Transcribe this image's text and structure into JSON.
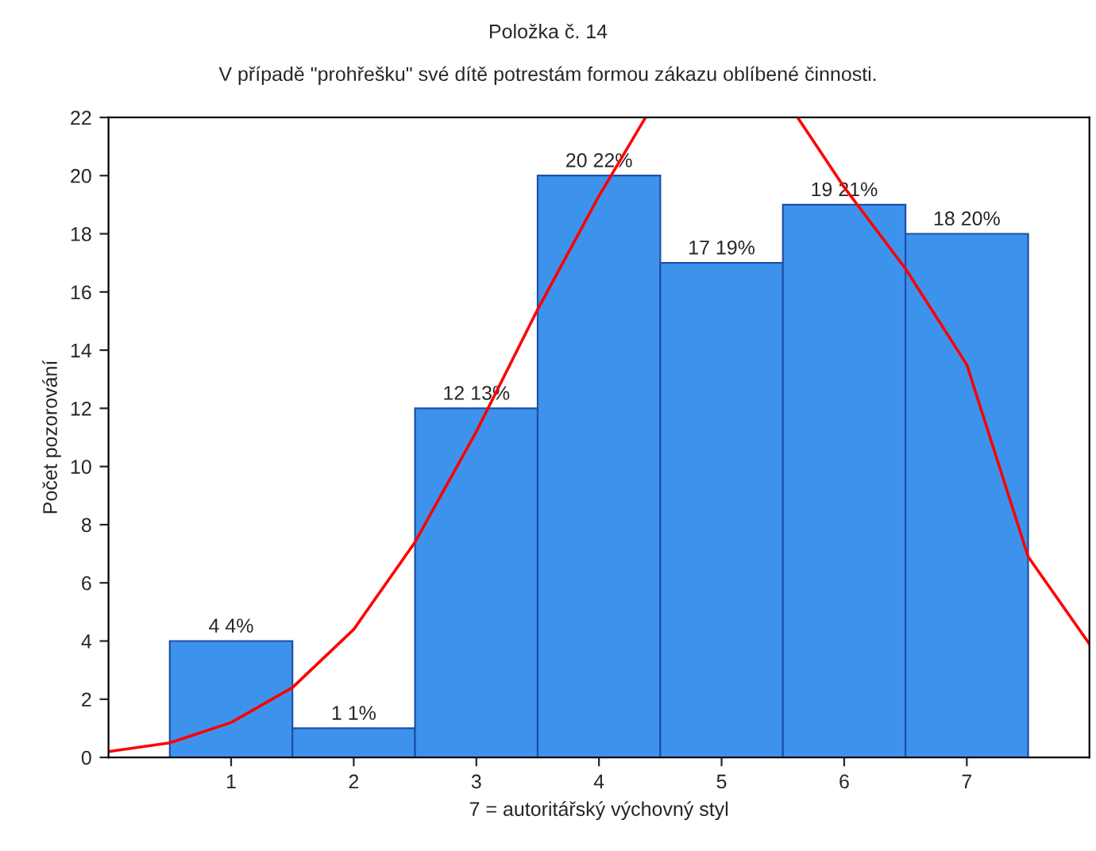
{
  "chart_data": {
    "type": "histogram",
    "title": "Položka č. 14",
    "subtitle": "V případě \"prohřešku\" své dítě potrestám formou zákazu oblíbené činnosti.",
    "xlabel": "7 = autoritářský výchovný styl",
    "ylabel": "Počet pozorování",
    "bins": [
      0.5,
      1.5,
      2.5,
      3.5,
      4.5,
      5.5,
      6.5,
      7.5
    ],
    "values": [
      4,
      1,
      12,
      20,
      17,
      19,
      18
    ],
    "value_labels": [
      "4 4%",
      "1 1%",
      "12 13%",
      "20 22%",
      "17 19%",
      "19 21%",
      "18 20%"
    ],
    "color": "#3d93ec",
    "series": [
      {
        "type": "line",
        "color": "#ff0000",
        "x": [
          0,
          0.5,
          1,
          1.5,
          2,
          2.5,
          3,
          3.5,
          4,
          4.38,
          5,
          5.62,
          6,
          6.5,
          7,
          7.5,
          8
        ],
        "values": [
          0.2,
          0.5,
          1.2,
          2.4,
          4.4,
          7.4,
          11.2,
          15.4,
          19.3,
          22,
          null,
          22,
          19.6,
          16.8,
          13.5,
          6.9,
          3.9
        ]
      }
    ],
    "xlim": [
      0,
      8
    ],
    "xticks": [
      1,
      2,
      3,
      4,
      5,
      6,
      7
    ],
    "ylim": [
      0,
      22
    ],
    "yticks": [
      0,
      2,
      4,
      6,
      8,
      10,
      12,
      14,
      16,
      18,
      20,
      22
    ],
    "grid": false,
    "legend": false
  }
}
